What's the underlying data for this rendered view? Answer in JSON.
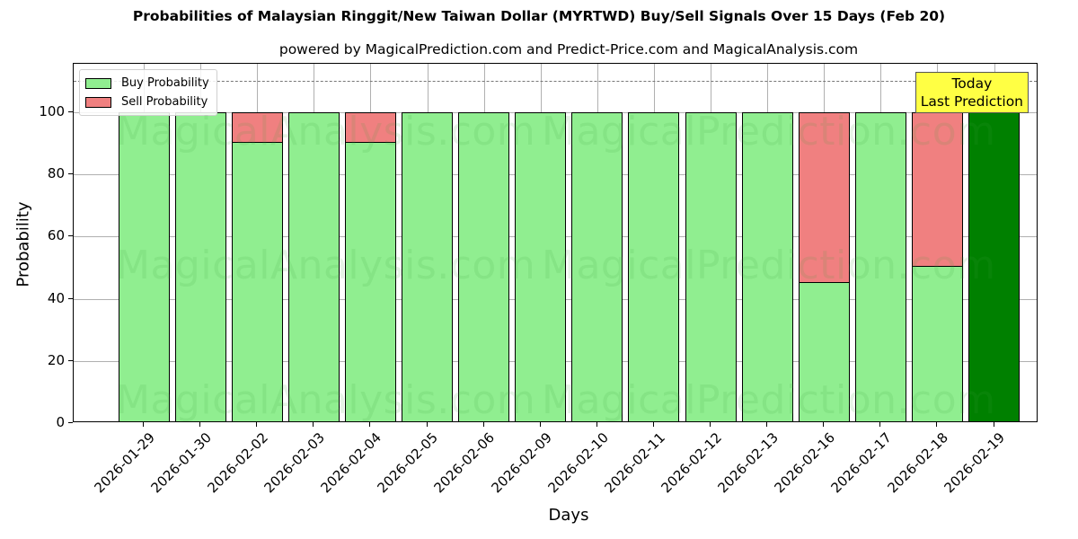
{
  "header": {
    "title": "Probabilities of Malaysian Ringgit/New Taiwan Dollar (MYRTWD) Buy/Sell Signals Over 15 Days (Feb 20)",
    "subtitle": "powered by MagicalPrediction.com and Predict-Price.com and MagicalAnalysis.com"
  },
  "legend": {
    "buy_label": "Buy Probability",
    "sell_label": "Sell Probability"
  },
  "annotation": {
    "line1": "Today",
    "line2": "Last Prediction"
  },
  "axes": {
    "xlabel": "Days",
    "ylabel": "Probability",
    "yticks": [
      "0",
      "20",
      "40",
      "60",
      "80",
      "100"
    ]
  },
  "watermarks": [
    "MagicalAnalysis.com",
    "MagicalPrediction.com"
  ],
  "colors": {
    "buy": "#90ee90",
    "sell": "#f08080",
    "today": "#008000",
    "annotation_bg": "#ffff44"
  },
  "chart_data": {
    "type": "bar",
    "stacked": true,
    "title": "Probabilities of Malaysian Ringgit/New Taiwan Dollar (MYRTWD) Buy/Sell Signals Over 15 Days (Feb 20)",
    "subtitle": "powered by MagicalPrediction.com and Predict-Price.com and MagicalAnalysis.com",
    "xlabel": "Days",
    "ylabel": "Probability",
    "ylim": [
      0,
      115
    ],
    "yticks": [
      0,
      20,
      40,
      60,
      80,
      100
    ],
    "grid": true,
    "legend_position": "upper left",
    "reference_line": {
      "y": 110,
      "style": "dashed"
    },
    "categories": [
      "2026-01-29",
      "2026-01-30",
      "2026-02-02",
      "2026-02-03",
      "2026-02-04",
      "2026-02-05",
      "2026-02-06",
      "2026-02-09",
      "2026-02-10",
      "2026-02-11",
      "2026-02-12",
      "2026-02-13",
      "2026-02-16",
      "2026-02-17",
      "2026-02-18",
      "2026-02-19"
    ],
    "series": [
      {
        "name": "Buy Probability",
        "values": [
          100,
          100,
          90.5,
          100,
          90.5,
          100,
          100,
          100,
          100,
          100,
          100,
          100,
          45.4,
          100,
          50.6,
          100
        ]
      },
      {
        "name": "Sell Probability",
        "values": [
          0,
          0,
          9.5,
          0,
          9.5,
          0,
          0,
          0,
          0,
          0,
          0,
          0,
          54.6,
          0,
          49.4,
          0
        ]
      }
    ],
    "annotations": [
      {
        "text": "Today\nLast Prediction",
        "category": "2026-02-19"
      }
    ]
  }
}
